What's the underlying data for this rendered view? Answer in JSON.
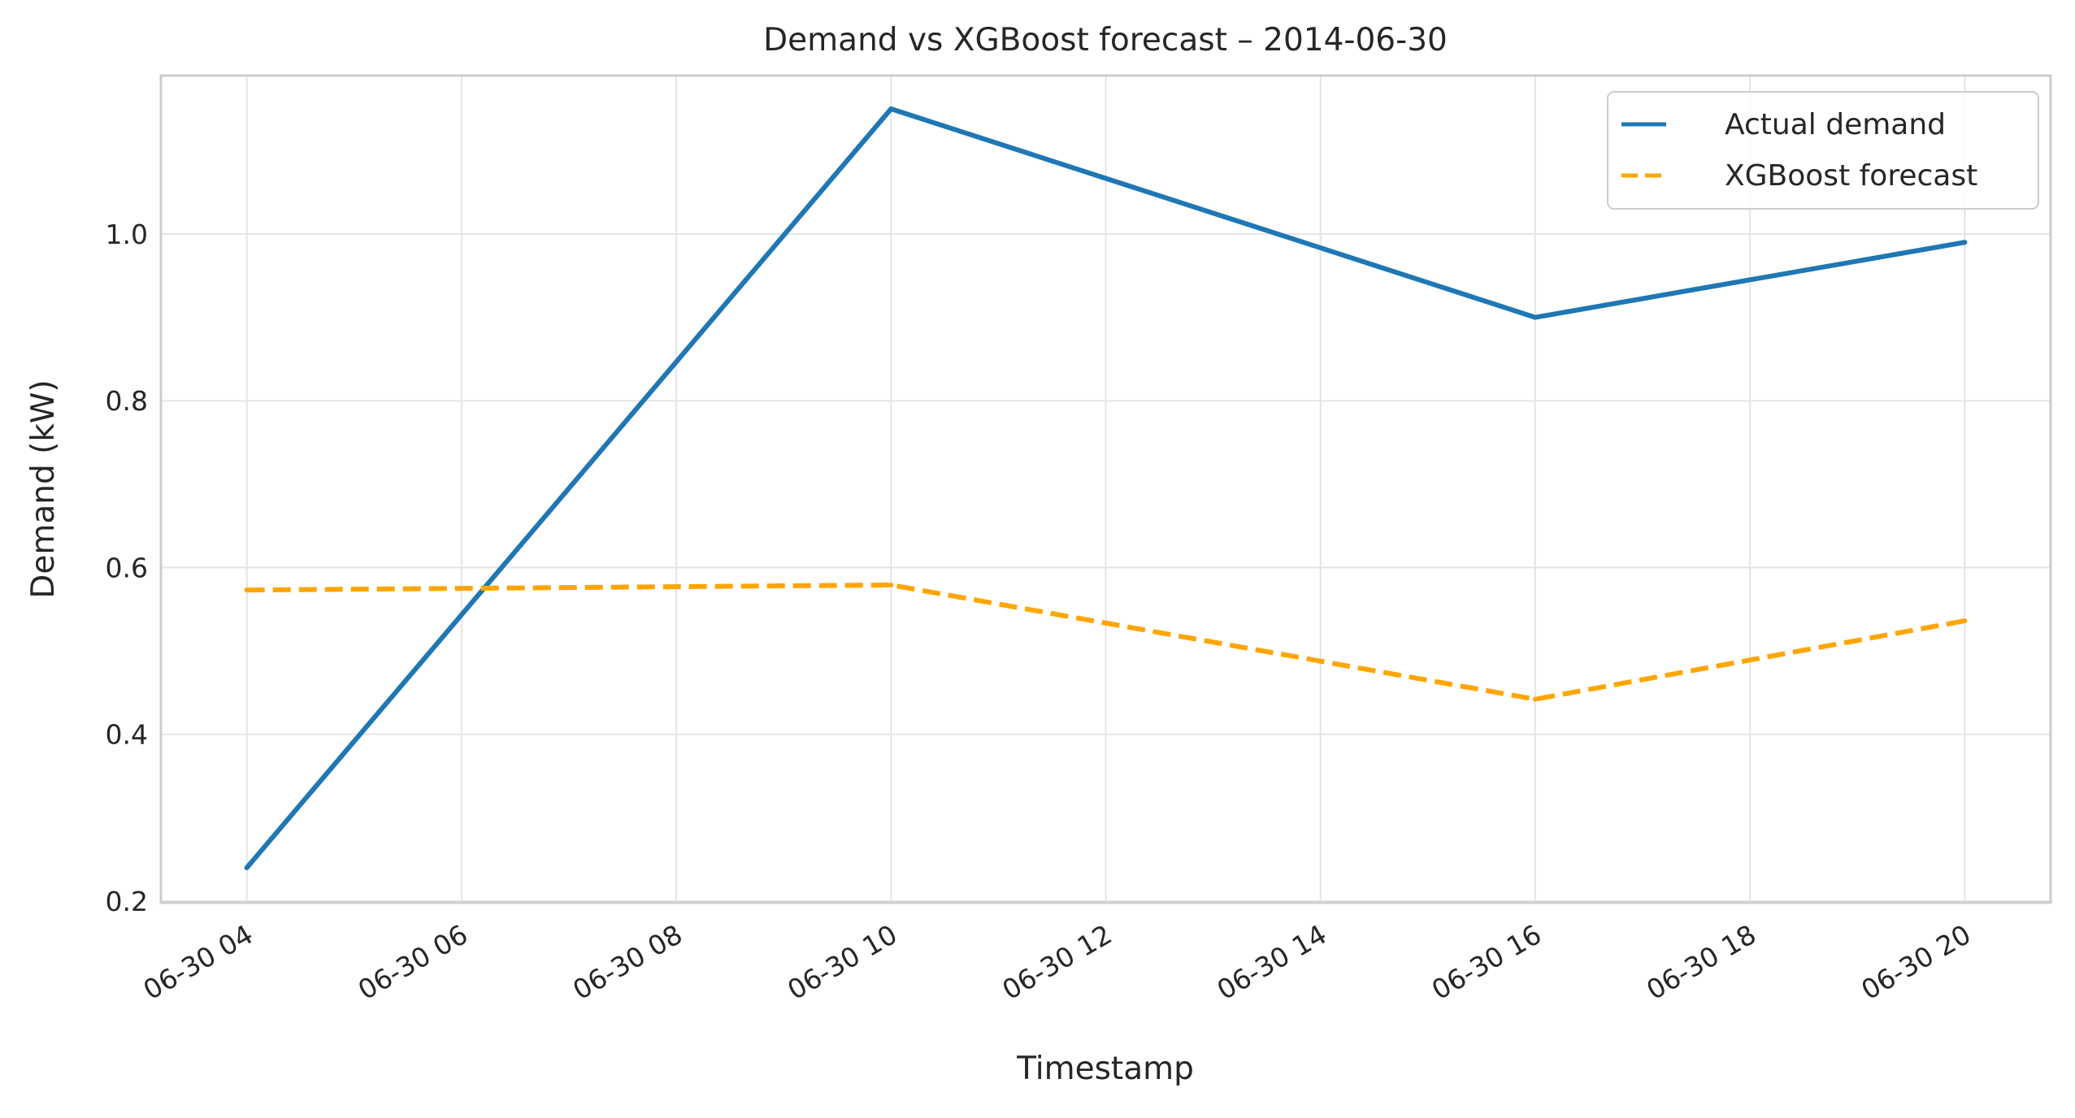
{
  "chart_data": {
    "type": "line",
    "title": "Demand vs XGBoost forecast – 2014-06-30",
    "xlabel": "Timestamp",
    "ylabel": "Demand (kW)",
    "xlim": [
      "2014-06-30 03:12",
      "2014-06-30 20:48"
    ],
    "ylim": [
      0.198,
      1.19
    ],
    "x_ticks": [
      {
        "value": "2014-06-30 04:00",
        "label": "06-30 04"
      },
      {
        "value": "2014-06-30 06:00",
        "label": "06-30 06"
      },
      {
        "value": "2014-06-30 08:00",
        "label": "06-30 08"
      },
      {
        "value": "2014-06-30 10:00",
        "label": "06-30 10"
      },
      {
        "value": "2014-06-30 12:00",
        "label": "06-30 12"
      },
      {
        "value": "2014-06-30 14:00",
        "label": "06-30 14"
      },
      {
        "value": "2014-06-30 16:00",
        "label": "06-30 16"
      },
      {
        "value": "2014-06-30 18:00",
        "label": "06-30 18"
      },
      {
        "value": "2014-06-30 20:00",
        "label": "06-30 20"
      }
    ],
    "y_ticks": [
      {
        "value": 0.2,
        "label": "0.2"
      },
      {
        "value": 0.4,
        "label": "0.4"
      },
      {
        "value": 0.6,
        "label": "0.6"
      },
      {
        "value": 0.8,
        "label": "0.8"
      },
      {
        "value": 1.0,
        "label": "1.0"
      }
    ],
    "grid": true,
    "legend_position": "top-right",
    "series": [
      {
        "name": "Actual demand",
        "color": "#1f77b4",
        "style": "solid",
        "x": [
          "2014-06-30 04:00",
          "2014-06-30 10:00",
          "2014-06-30 16:00",
          "2014-06-30 20:00"
        ],
        "values": [
          0.24,
          1.15,
          0.9,
          0.99
        ]
      },
      {
        "name": "XGBoost forecast",
        "color": "#ffa500",
        "style": "dashed",
        "x": [
          "2014-06-30 04:00",
          "2014-06-30 10:00",
          "2014-06-30 16:00",
          "2014-06-30 20:00"
        ],
        "values": [
          0.573,
          0.579,
          0.442,
          0.536
        ]
      }
    ]
  }
}
